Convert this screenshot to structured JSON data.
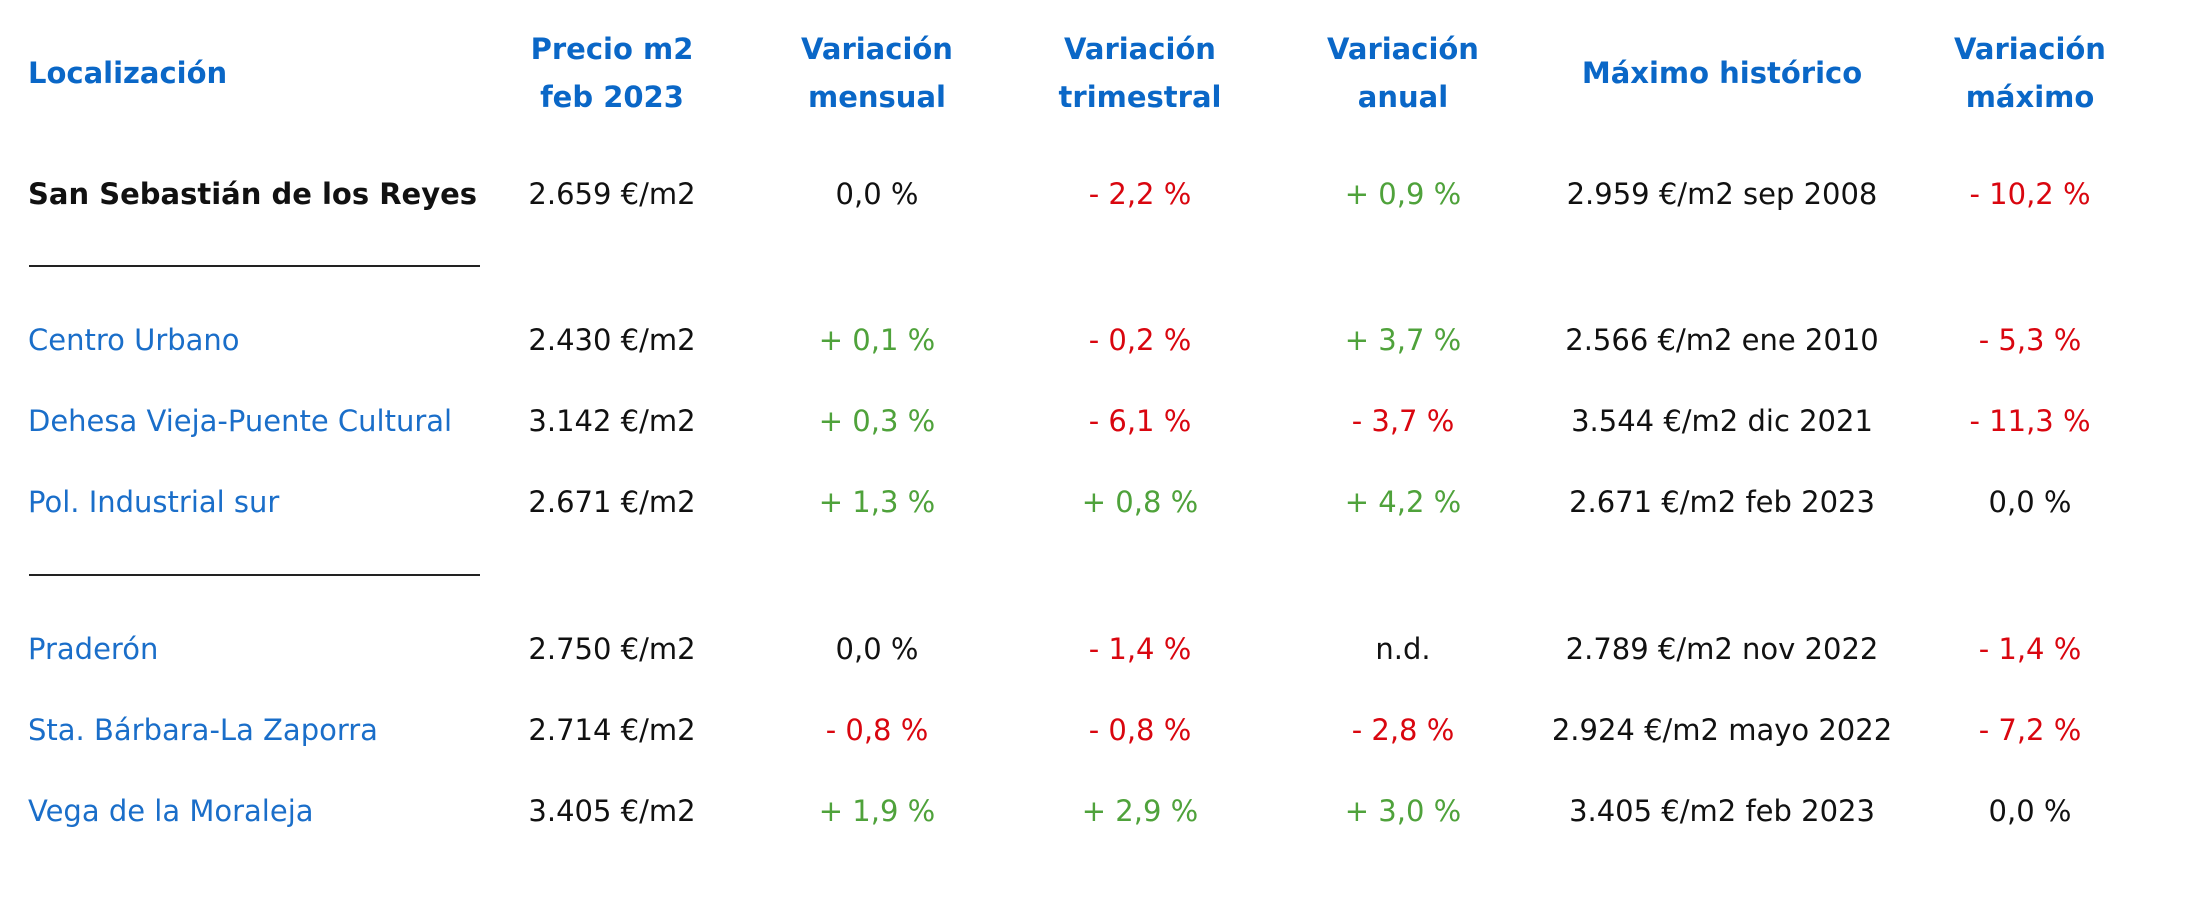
{
  "headers": {
    "localizacion": "Localización",
    "precio": "Precio m2\nfeb 2023",
    "var_mensual": "Variación\nmensual",
    "var_trimestral": "Variación\ntrimestral",
    "var_anual": "Variación\nanual",
    "maximo": "Máximo histórico",
    "var_maximo": "Variación\nmáximo"
  },
  "colors": {
    "header": "#0a67c7",
    "link": "#1a6ec9",
    "positive": "#4fa23b",
    "negative": "#d9060f",
    "neutral": "#111111"
  },
  "rows": [
    {
      "localizacion": "San Sebastián de los Reyes",
      "precio": "2.659 €/m2",
      "mensual": "0,0 %",
      "trimestral": "- 2,2 %",
      "anual": "+ 0,9 %",
      "maximo": "2.959 €/m2 sep 2008",
      "var_maximo": "- 10,2 %"
    },
    {
      "localizacion": "Centro Urbano",
      "precio": "2.430 €/m2",
      "mensual": "+ 0,1 %",
      "trimestral": "- 0,2 %",
      "anual": "+ 3,7 %",
      "maximo": "2.566 €/m2 ene 2010",
      "var_maximo": "- 5,3 %"
    },
    {
      "localizacion": "Dehesa Vieja-Puente Cultural",
      "precio": "3.142 €/m2",
      "mensual": "+ 0,3 %",
      "trimestral": "- 6,1 %",
      "anual": "- 3,7 %",
      "maximo": "3.544 €/m2 dic 2021",
      "var_maximo": "- 11,3 %"
    },
    {
      "localizacion": "Pol. Industrial sur",
      "precio": "2.671 €/m2",
      "mensual": "+ 1,3 %",
      "trimestral": "+ 0,8 %",
      "anual": "+ 4,2 %",
      "maximo": "2.671 €/m2 feb 2023",
      "var_maximo": "0,0 %"
    },
    {
      "localizacion": "Praderón",
      "precio": "2.750 €/m2",
      "mensual": "0,0 %",
      "trimestral": "- 1,4 %",
      "anual": "n.d.",
      "maximo": "2.789 €/m2 nov 2022",
      "var_maximo": "- 1,4 %"
    },
    {
      "localizacion": "Sta. Bárbara-La Zaporra",
      "precio": "2.714 €/m2",
      "mensual": "- 0,8 %",
      "trimestral": "- 0,8 %",
      "anual": "- 2,8 %",
      "maximo": "2.924 €/m2 mayo 2022",
      "var_maximo": "- 7,2 %"
    },
    {
      "localizacion": "Vega de la Moraleja",
      "precio": "3.405 €/m2",
      "mensual": "+ 1,9 %",
      "trimestral": "+ 2,9 %",
      "anual": "+ 3,0 %",
      "maximo": "3.405 €/m2 feb 2023",
      "var_maximo": "0,0 %"
    }
  ]
}
